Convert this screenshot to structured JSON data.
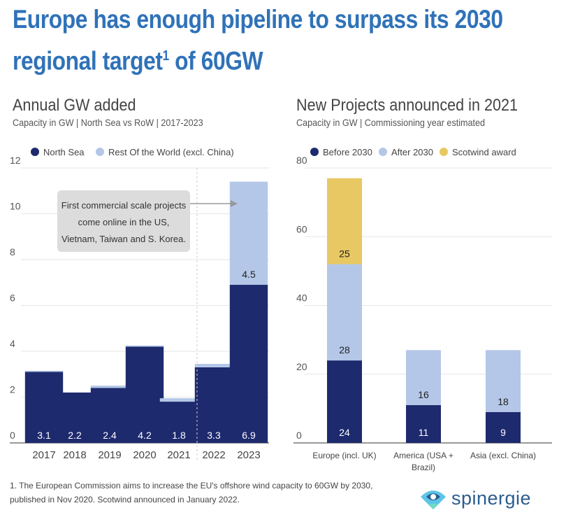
{
  "title": {
    "main": "Europe has enough pipeline to surpass its 2030 regional target",
    "sup": "1",
    "end": " of 60GW"
  },
  "colors": {
    "dark": "#1e2a6e",
    "light": "#b4c7e8",
    "yellow": "#e8c862",
    "title": "#2f72b8"
  },
  "chart_data": [
    {
      "type": "bar",
      "stacked": true,
      "title": "Annual GW added",
      "subtitle": "Capacity in GW | North Sea vs RoW | 2017-2023",
      "categories": [
        "2017",
        "2018",
        "2019",
        "2020",
        "2021",
        "2022",
        "2023"
      ],
      "series": [
        {
          "name": "North Sea",
          "values": [
            3.1,
            2.2,
            2.4,
            4.2,
            1.8,
            3.3,
            6.9
          ],
          "labels": [
            "3.1",
            "2.2",
            "2.4",
            "4.2",
            "1.8",
            "3.3",
            "6.9"
          ]
        },
        {
          "name": "Rest Of the World (excl. China)",
          "values": [
            0.05,
            0,
            0.1,
            0.05,
            0.15,
            0.15,
            4.5
          ],
          "labels": [
            "",
            "",
            "",
            "",
            "",
            "",
            "4.5"
          ]
        }
      ],
      "ylim": [
        0,
        12
      ],
      "yticks": [
        "0",
        "2",
        "4",
        "6",
        "8",
        "10",
        "12"
      ],
      "grid": true,
      "legend": "top",
      "annotation": [
        "First commercial scale projects",
        "come online in the US,",
        "Vietnam, Taiwan and S. Korea."
      ]
    },
    {
      "type": "bar",
      "stacked": true,
      "title": "New Projects announced in 2021",
      "subtitle": "Capacity in GW | Commissioning year estimated",
      "categories": [
        [
          "Europe (incl. UK)"
        ],
        [
          "America (USA +",
          "Brazil)"
        ],
        [
          "Asia (excl. China)"
        ]
      ],
      "series": [
        {
          "name": "Before 2030",
          "values": [
            24,
            11,
            9
          ]
        },
        {
          "name": "After 2030",
          "values": [
            28,
            16,
            18
          ]
        },
        {
          "name": "Scotwind award",
          "values": [
            25,
            0,
            0
          ]
        }
      ],
      "ylim": [
        0,
        80
      ],
      "yticks": [
        "0",
        "20",
        "40",
        "60",
        "80"
      ],
      "grid": true,
      "legend": "top"
    }
  ],
  "footnote": [
    "1. The European Commission aims to increase the EU's offshore wind capacity to 60GW by 2030,",
    "published in Nov 2020.  Scotwind announced in January 2022."
  ],
  "logo": "spinergie"
}
